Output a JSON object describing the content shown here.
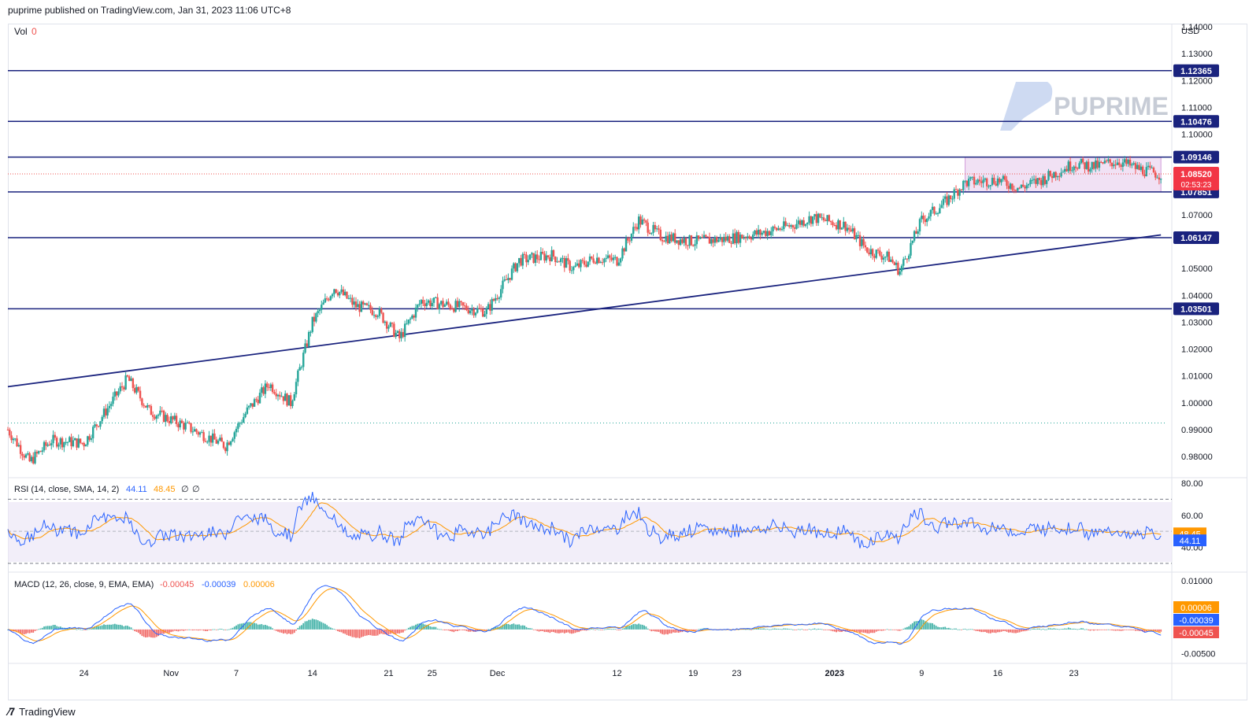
{
  "header": {
    "published": "puprime published on TradingView.com, Jan 31, 2023 11:06 UTC+8"
  },
  "footer": {
    "brand": "TradingView",
    "logo_icon": "tradingview-logo-icon"
  },
  "watermark": {
    "text": "PUPRIME",
    "icon": "puprime-logo-icon"
  },
  "vol": {
    "label": "Vol",
    "value": "0"
  },
  "colors": {
    "up": "#26a69a",
    "down": "#ef5350",
    "level": "#1a237e",
    "rsi": "#2962ff",
    "rsi_ma": "#ff9800",
    "box": "#e1bee7"
  },
  "chart_data": {
    "type": "candlestick",
    "instrument_currency": "USD",
    "price_axis": {
      "ylim": [
        0.973,
        1.14
      ],
      "ticks": [
        "1.14000",
        "1.13000",
        "1.12000",
        "1.11000",
        "1.10000",
        "1.07000",
        "1.05000",
        "1.04000",
        "1.03000",
        "1.02000",
        "1.01000",
        "1.00000",
        "0.99000",
        "0.98000"
      ]
    },
    "x_ticks": [
      {
        "label": "24",
        "date": "2022-10-24"
      },
      {
        "label": "Nov",
        "date": "2022-11-01"
      },
      {
        "label": "7",
        "date": "2022-11-07"
      },
      {
        "label": "14",
        "date": "2022-11-14"
      },
      {
        "label": "21",
        "date": "2022-11-21"
      },
      {
        "label": "25",
        "date": "2022-11-25"
      },
      {
        "label": "Dec",
        "date": "2022-12-01"
      },
      {
        "label": "12",
        "date": "2022-12-12"
      },
      {
        "label": "19",
        "date": "2022-12-19"
      },
      {
        "label": "23",
        "date": "2022-12-23"
      },
      {
        "label": "2023",
        "date": "2023-01-01"
      },
      {
        "label": "9",
        "date": "2023-01-09"
      },
      {
        "label": "16",
        "date": "2023-01-16"
      },
      {
        "label": "23",
        "date": "2023-01-23"
      }
    ],
    "levels": [
      {
        "label": "1.12365",
        "value": 1.12365
      },
      {
        "label": "1.10476",
        "value": 1.10476
      },
      {
        "label": "1.09146",
        "value": 1.09146
      },
      {
        "label": "1.07851",
        "value": 1.07851
      },
      {
        "label": "1.06147",
        "value": 1.06147
      },
      {
        "label": "1.03501",
        "value": 1.03501
      }
    ],
    "current_price": {
      "label": "1.08520",
      "value": 1.0852,
      "countdown": "02:53:23"
    },
    "range_box": {
      "x_start": "2023-01-13",
      "x_end": "2023-01-31",
      "top": 1.09146,
      "bottom": 1.07851
    },
    "trendline": {
      "start": {
        "date": "2022-10-17",
        "price": 1.006
      },
      "end": {
        "date": "2023-01-31",
        "price": 1.0625
      }
    },
    "reference_line": 0.9925,
    "path": [
      [
        "2022-10-17",
        0.99
      ],
      [
        "2022-10-19",
        0.978
      ],
      [
        "2022-10-21",
        0.986
      ],
      [
        "2022-10-24",
        0.985
      ],
      [
        "2022-10-26",
        0.997
      ],
      [
        "2022-10-28",
        1.009
      ],
      [
        "2022-10-30",
        0.997
      ],
      [
        "2022-11-02",
        0.992
      ],
      [
        "2022-11-04",
        0.988
      ],
      [
        "2022-11-06",
        0.984
      ],
      [
        "2022-11-08",
        0.997
      ],
      [
        "2022-11-10",
        1.007
      ],
      [
        "2022-11-12",
        1.0
      ],
      [
        "2022-11-14",
        1.03
      ],
      [
        "2022-11-16",
        1.043
      ],
      [
        "2022-11-18",
        1.036
      ],
      [
        "2022-11-20",
        1.034
      ],
      [
        "2022-11-22",
        1.024
      ],
      [
        "2022-11-24",
        1.038
      ],
      [
        "2022-11-27",
        1.036
      ],
      [
        "2022-11-30",
        1.034
      ],
      [
        "2022-12-03",
        1.053
      ],
      [
        "2022-12-06",
        1.055
      ],
      [
        "2022-12-08",
        1.05
      ],
      [
        "2022-12-10",
        1.054
      ],
      [
        "2022-12-12",
        1.053
      ],
      [
        "2022-12-14",
        1.068
      ],
      [
        "2022-12-16",
        1.062
      ],
      [
        "2022-12-19",
        1.06
      ],
      [
        "2022-12-22",
        1.061
      ],
      [
        "2022-12-25",
        1.063
      ],
      [
        "2022-12-28",
        1.066
      ],
      [
        "2022-12-30",
        1.069
      ],
      [
        "2023-01-02",
        1.066
      ],
      [
        "2023-01-04",
        1.057
      ],
      [
        "2023-01-06",
        1.054
      ],
      [
        "2023-01-07",
        1.049
      ],
      [
        "2023-01-09",
        1.068
      ],
      [
        "2023-01-11",
        1.074
      ],
      [
        "2023-01-13",
        1.082
      ],
      [
        "2023-01-16",
        1.083
      ],
      [
        "2023-01-18",
        1.08
      ],
      [
        "2023-01-20",
        1.083
      ],
      [
        "2023-01-23",
        1.089
      ],
      [
        "2023-01-25",
        1.088
      ],
      [
        "2023-01-27",
        1.09
      ],
      [
        "2023-01-29",
        1.087
      ],
      [
        "2023-01-31",
        1.085
      ]
    ],
    "rsi": {
      "label": "RSI (14, close, SMA, 14, 2)",
      "value": "44.11",
      "ma_value": "48.45",
      "extra1": "∅",
      "extra2": "∅",
      "ticks": [
        "80.00",
        "60.00",
        "40.00"
      ],
      "bands": [
        70,
        30
      ],
      "ylim": [
        27,
        81
      ]
    },
    "macd": {
      "label": "MACD (12, 26, close, 9, EMA, EMA)",
      "hist": "-0.00045",
      "macd": "-0.00039",
      "signal": "0.00006",
      "ticks": [
        "0.01000",
        "-0.00500"
      ],
      "ylim": [
        -0.0065,
        0.011
      ]
    }
  }
}
